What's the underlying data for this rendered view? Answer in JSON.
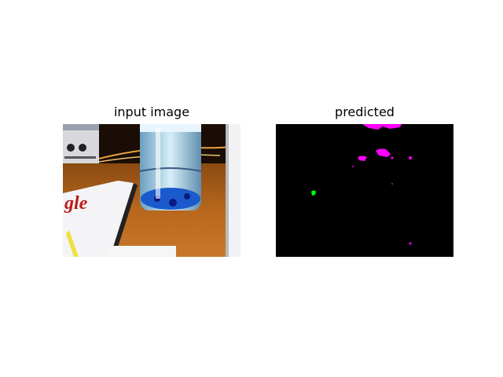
{
  "figure": {
    "panels": [
      {
        "title": "input image",
        "content": "photo: water bottle on wooden desk"
      },
      {
        "title": "predicted",
        "content": "segmentation mask"
      }
    ]
  },
  "logo_text": "gle",
  "colors": {
    "background": "#ffffff",
    "mask_background": "#000000",
    "class_magenta": "#ff00ff",
    "class_green": "#00ff00"
  }
}
